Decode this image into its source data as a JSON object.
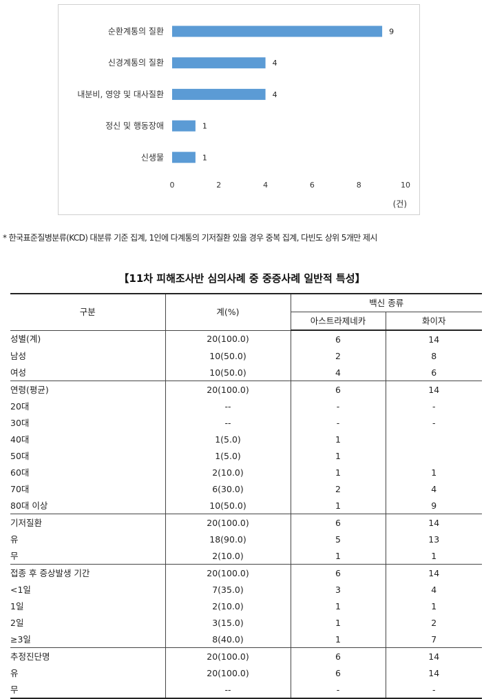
{
  "chart_data": {
    "type": "bar",
    "orientation": "horizontal",
    "categories": [
      "순환계통의 질환",
      "신경계통의 질환",
      "내분비, 영양 및 대사질환",
      "정신 및 행동장애",
      "신생물"
    ],
    "values": [
      9,
      4,
      4,
      1,
      1
    ],
    "xticks": [
      "0",
      "2",
      "4",
      "6",
      "8",
      "10"
    ],
    "xlim": [
      0,
      10
    ],
    "unit": "(건)",
    "bar_color": "#5b9bd5",
    "grid": false,
    "legend": "none"
  },
  "footnote": "* 한국표준질병분류(KCD) 대분류 기준 집계,  1인에 다계통의 기저질환 있을 경우 중복 집계, 다빈도 상위 5개만 제시",
  "table": {
    "title": "【11차 피해조사반 심의사례 중 중증사례 일반적 특성】",
    "headers": {
      "category": "구분",
      "total": "계(%)",
      "vaccine": "백신 종류",
      "az": "아스트라제네카",
      "pfizer": "화이자"
    },
    "groups": [
      {
        "label": "성별(계)",
        "total": "20(100.0)",
        "az": "6",
        "pfizer": "14",
        "rows": [
          {
            "label": "남성",
            "total": "10(50.0)",
            "az": "2",
            "pfizer": "8"
          },
          {
            "label": "여성",
            "total": "10(50.0)",
            "az": "4",
            "pfizer": "6"
          }
        ]
      },
      {
        "label": "연령(평균)",
        "total": "20(100.0)",
        "az": "6",
        "pfizer": "14",
        "rows": [
          {
            "label": "20대",
            "total": "--",
            "az": "-",
            "pfizer": "-"
          },
          {
            "label": "30대",
            "total": "--",
            "az": "-",
            "pfizer": "-"
          },
          {
            "label": "40대",
            "total": "1(5.0)",
            "az": "1",
            "pfizer": ""
          },
          {
            "label": "50대",
            "total": "1(5.0)",
            "az": "1",
            "pfizer": ""
          },
          {
            "label": "60대",
            "total": "2(10.0)",
            "az": "1",
            "pfizer": "1"
          },
          {
            "label": "70대",
            "total": "6(30.0)",
            "az": "2",
            "pfizer": "4"
          },
          {
            "label": "80대 이상",
            "total": "10(50.0)",
            "az": "1",
            "pfizer": "9"
          }
        ]
      },
      {
        "label": "기저질환",
        "total": "20(100.0)",
        "az": "6",
        "pfizer": "14",
        "rows": [
          {
            "label": "유",
            "total": "18(90.0)",
            "az": "5",
            "pfizer": "13"
          },
          {
            "label": "무",
            "total": "2(10.0)",
            "az": "1",
            "pfizer": "1"
          }
        ]
      },
      {
        "label": "접종 후 증상발생 기간",
        "total": "20(100.0)",
        "az": "6",
        "pfizer": "14",
        "rows": [
          {
            "label": "<1일",
            "total": "7(35.0)",
            "az": "3",
            "pfizer": "4"
          },
          {
            "label": "1일",
            "total": "2(10.0)",
            "az": "1",
            "pfizer": "1"
          },
          {
            "label": "2일",
            "total": "3(15.0)",
            "az": "1",
            "pfizer": "2"
          },
          {
            "label": "≥3일",
            "total": "8(40.0)",
            "az": "1",
            "pfizer": "7"
          }
        ]
      },
      {
        "label": "추정진단명",
        "total": "20(100.0)",
        "az": "6",
        "pfizer": "14",
        "rows": [
          {
            "label": "유",
            "total": "20(100.0)",
            "az": "6",
            "pfizer": "14"
          },
          {
            "label": "무",
            "total": "--",
            "az": "-",
            "pfizer": "-"
          }
        ]
      }
    ]
  }
}
